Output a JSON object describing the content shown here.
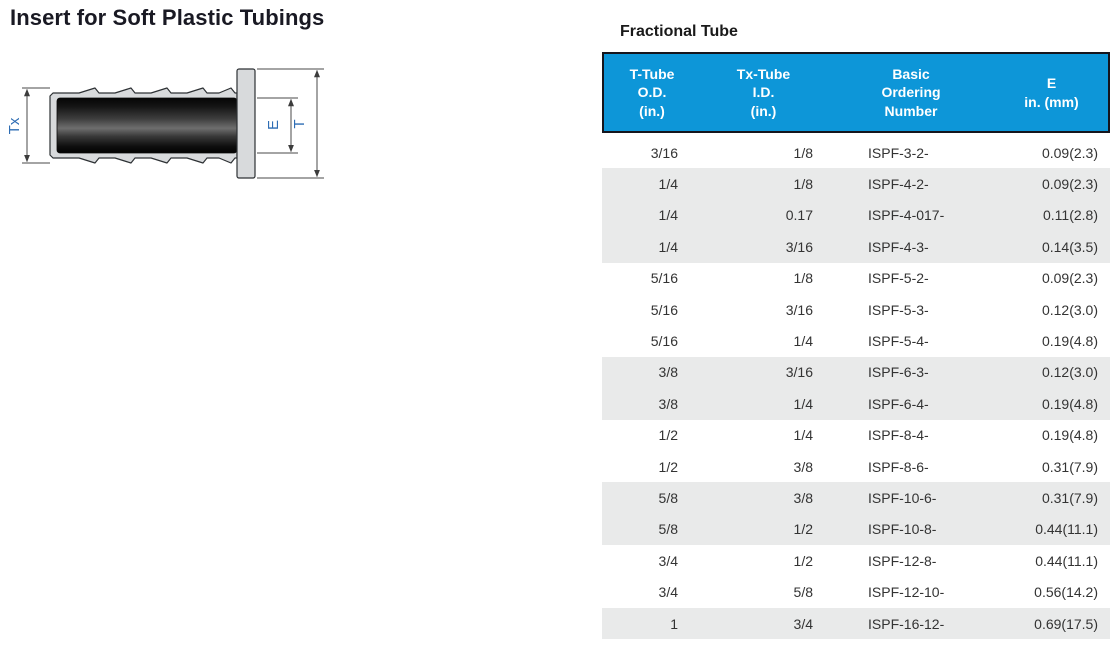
{
  "page": {
    "title": "Insert for Soft Plastic Tubings"
  },
  "diagram": {
    "labels": {
      "outer_diameter": "Tx",
      "bore": "E",
      "flange": "T"
    },
    "label_color": "#2e6db4",
    "part_fill": "#d8dadc",
    "part_outline": "#2d3134"
  },
  "table": {
    "title": "Fractional Tube",
    "header_bg": "#0d96d8",
    "header_border": "#15151d",
    "shaded_row_bg": "#e9eaea",
    "columns": [
      {
        "label": "T-Tube\nO.D.\n(in.)"
      },
      {
        "label": "Tx-Tube\nI.D.\n(in.)"
      },
      {
        "label": "Basic\nOrdering\nNumber"
      },
      {
        "label": "E\nin. (mm)"
      }
    ],
    "rows": [
      {
        "t_od": "3/16",
        "tx_id": "1/8",
        "order_no": "ISPF-3-2-",
        "e": "0.09(2.3)",
        "shaded": false
      },
      {
        "t_od": "1/4",
        "tx_id": "1/8",
        "order_no": "ISPF-4-2-",
        "e": "0.09(2.3)",
        "shaded": true
      },
      {
        "t_od": "1/4",
        "tx_id": "0.17",
        "order_no": "ISPF-4-017-",
        "e": "0.11(2.8)",
        "shaded": true
      },
      {
        "t_od": "1/4",
        "tx_id": "3/16",
        "order_no": "ISPF-4-3-",
        "e": "0.14(3.5)",
        "shaded": true
      },
      {
        "t_od": "5/16",
        "tx_id": "1/8",
        "order_no": "ISPF-5-2-",
        "e": "0.09(2.3)",
        "shaded": false
      },
      {
        "t_od": "5/16",
        "tx_id": "3/16",
        "order_no": "ISPF-5-3-",
        "e": "0.12(3.0)",
        "shaded": false
      },
      {
        "t_od": "5/16",
        "tx_id": "1/4",
        "order_no": "ISPF-5-4-",
        "e": "0.19(4.8)",
        "shaded": false
      },
      {
        "t_od": "3/8",
        "tx_id": "3/16",
        "order_no": "ISPF-6-3-",
        "e": "0.12(3.0)",
        "shaded": true
      },
      {
        "t_od": "3/8",
        "tx_id": "1/4",
        "order_no": "ISPF-6-4-",
        "e": "0.19(4.8)",
        "shaded": true
      },
      {
        "t_od": "1/2",
        "tx_id": "1/4",
        "order_no": "ISPF-8-4-",
        "e": "0.19(4.8)",
        "shaded": false
      },
      {
        "t_od": "1/2",
        "tx_id": "3/8",
        "order_no": "ISPF-8-6-",
        "e": "0.31(7.9)",
        "shaded": false
      },
      {
        "t_od": "5/8",
        "tx_id": "3/8",
        "order_no": "ISPF-10-6-",
        "e": "0.31(7.9)",
        "shaded": true
      },
      {
        "t_od": "5/8",
        "tx_id": "1/2",
        "order_no": "ISPF-10-8-",
        "e": "0.44(11.1)",
        "shaded": true
      },
      {
        "t_od": "3/4",
        "tx_id": "1/2",
        "order_no": "ISPF-12-8-",
        "e": "0.44(11.1)",
        "shaded": false
      },
      {
        "t_od": "3/4",
        "tx_id": "5/8",
        "order_no": "ISPF-12-10-",
        "e": "0.56(14.2)",
        "shaded": false
      },
      {
        "t_od": "1",
        "tx_id": "3/4",
        "order_no": "ISPF-16-12-",
        "e": "0.69(17.5)",
        "shaded": true
      }
    ]
  }
}
